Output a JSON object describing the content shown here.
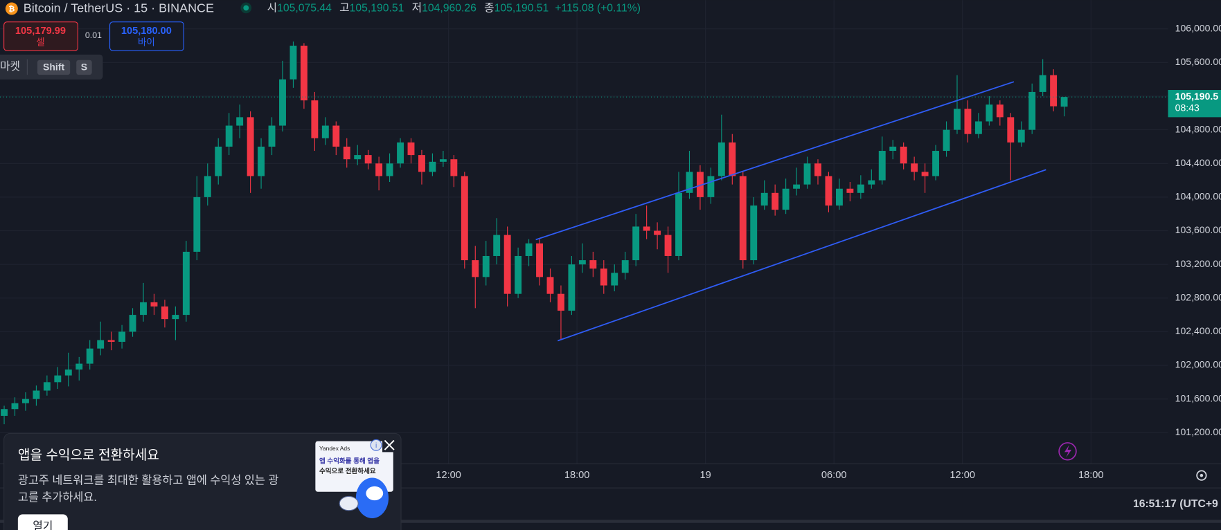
{
  "chart_data": {
    "type": "candlestick",
    "header": {
      "symbol": "Bitcoin / TetherUS · 15 · BINANCE",
      "ohlc": [
        {
          "key": "시",
          "value": "105,075.44"
        },
        {
          "key": "고",
          "value": "105,190.51"
        },
        {
          "key": "저",
          "value": "104,960.26"
        },
        {
          "key": "종",
          "value": "105,190.51"
        }
      ],
      "change": "+115.08 (+0.11%)"
    },
    "open": [
      101400,
      101480,
      101550,
      101600,
      101700,
      101800,
      101880,
      101950,
      102020,
      102200,
      102300,
      102280,
      102400,
      102600,
      102750,
      102700,
      102550,
      102600,
      103350,
      104000,
      104250,
      104600,
      104850,
      104950,
      104250,
      104600,
      104850,
      105400,
      105800,
      105150,
      104700,
      104850,
      104600,
      104450,
      104500,
      104400,
      104250,
      104400,
      104650,
      104500,
      104300,
      104420,
      104450,
      104250,
      103250,
      103050,
      103300,
      103550,
      102850,
      103300,
      103450,
      103050,
      102850,
      102650,
      103200,
      103250,
      103150,
      102950,
      103100,
      103250,
      103650,
      103600,
      103550,
      103300,
      104050,
      104300,
      104000,
      104250,
      104650,
      104250,
      103250,
      103900,
      104050,
      103850,
      104100,
      104150,
      104400,
      104250,
      103900,
      104100,
      104050,
      104150,
      104200,
      104550,
      104600,
      104400,
      104300,
      104250,
      104550,
      104800,
      105050,
      104750,
      104900,
      105100,
      104950,
      104650,
      104800,
      105250,
      105450,
      105075.44
    ],
    "high": [
      101520,
      101620,
      101680,
      101760,
      101880,
      101980,
      102150,
      102100,
      102300,
      102520,
      102400,
      102480,
      102680,
      102980,
      102850,
      102780,
      102700,
      103480,
      104250,
      104400,
      104700,
      105000,
      105100,
      105020,
      104700,
      104950,
      105620,
      105850,
      105830,
      105250,
      104950,
      104900,
      104700,
      104620,
      104560,
      104480,
      104520,
      104700,
      104700,
      104560,
      104520,
      104550,
      104500,
      104300,
      103420,
      103480,
      103750,
      103650,
      103400,
      103500,
      103500,
      103150,
      102950,
      103300,
      103450,
      103350,
      103250,
      103200,
      103350,
      103800,
      103900,
      103700,
      103650,
      104300,
      104550,
      104380,
      104350,
      104980,
      104750,
      104300,
      104000,
      104200,
      104150,
      104220,
      104350,
      104480,
      104450,
      104300,
      104220,
      104180,
      104260,
      104330,
      104720,
      104680,
      104650,
      104480,
      104400,
      104620,
      104900,
      105450,
      105150,
      105000,
      105200,
      105150,
      105000,
      104900,
      105350,
      105640,
      105520,
      105190.51
    ],
    "low": [
      101300,
      101400,
      101460,
      101520,
      101640,
      101720,
      101750,
      101820,
      101950,
      102120,
      102180,
      102200,
      102340,
      102520,
      102600,
      102450,
      102300,
      102520,
      103250,
      103900,
      104150,
      104500,
      104700,
      104050,
      104100,
      104500,
      104780,
      105300,
      105050,
      104550,
      104620,
      104500,
      104350,
      104380,
      104330,
      104080,
      104180,
      104350,
      104400,
      104150,
      104250,
      104360,
      104120,
      103150,
      102680,
      102950,
      103200,
      102700,
      102800,
      103180,
      102950,
      102750,
      102300,
      102600,
      103100,
      103050,
      102850,
      102880,
      103020,
      103180,
      103500,
      103380,
      103100,
      103250,
      103980,
      103850,
      103920,
      104200,
      104150,
      103150,
      103200,
      103850,
      103780,
      103800,
      104020,
      104100,
      104150,
      103820,
      103850,
      103950,
      103980,
      104100,
      104150,
      104450,
      104330,
      104200,
      104050,
      104200,
      104480,
      104750,
      104650,
      104700,
      104850,
      104850,
      104200,
      104600,
      104750,
      105200,
      105020,
      104960.26
    ],
    "close": [
      101480,
      101550,
      101600,
      101700,
      101800,
      101880,
      101950,
      102020,
      102200,
      102300,
      102280,
      102400,
      102600,
      102750,
      102700,
      102550,
      102600,
      103350,
      104000,
      104250,
      104600,
      104850,
      104950,
      104250,
      104600,
      104850,
      105400,
      105800,
      105150,
      104700,
      104850,
      104600,
      104450,
      104500,
      104400,
      104250,
      104400,
      104650,
      104500,
      104300,
      104420,
      104450,
      104250,
      103250,
      103050,
      103300,
      103550,
      102850,
      103300,
      103450,
      103050,
      102850,
      102650,
      103200,
      103250,
      103150,
      102950,
      103100,
      103250,
      103650,
      103600,
      103550,
      103300,
      104050,
      104300,
      104000,
      104250,
      104650,
      104250,
      103250,
      103900,
      104050,
      103850,
      104100,
      104150,
      104400,
      104250,
      103900,
      104100,
      104050,
      104150,
      104200,
      104550,
      104600,
      104400,
      104300,
      104250,
      104550,
      104800,
      105050,
      104750,
      104900,
      105100,
      104950,
      104650,
      104800,
      105250,
      105450,
      105080,
      105190.51
    ],
    "up_color": "#089981",
    "down_color": "#f23645",
    "xlim": [
      -0.39,
      108.7
    ],
    "xticks": [
      {
        "value": 41.5,
        "label": "12:00"
      },
      {
        "value": 53.5,
        "label": "18:00"
      },
      {
        "value": 65.5,
        "label": "19"
      },
      {
        "value": 77.5,
        "label": "06:00"
      },
      {
        "value": 89.5,
        "label": "12:00"
      },
      {
        "value": 101.5,
        "label": "18:00"
      }
    ],
    "ylim": [
      100830,
      106342
    ],
    "yticks": [
      {
        "value": 101200,
        "label": "101,200.00"
      },
      {
        "value": 101600,
        "label": "101,600.00"
      },
      {
        "value": 102000,
        "label": "102,000.00"
      },
      {
        "value": 102400,
        "label": "102,400.00"
      },
      {
        "value": 102800,
        "label": "102,800.00"
      },
      {
        "value": 103200,
        "label": "103,200.00"
      },
      {
        "value": 103600,
        "label": "103,600.00"
      },
      {
        "value": 104000,
        "label": "104,000.00"
      },
      {
        "value": 104400,
        "label": "104,400.00"
      },
      {
        "value": 104800,
        "label": "104,800.00"
      },
      {
        "value": 105200,
        "label": "105,200.00"
      },
      {
        "value": 105600,
        "label": "105,600.00"
      },
      {
        "value": 106000,
        "label": "106,000.00"
      }
    ],
    "grid": true,
    "price_tag": {
      "value": 105190.51,
      "label": "105,190.5",
      "countdown": "08:43",
      "color": "#089981"
    },
    "trend_lines": [
      {
        "color": "#2f5cf5",
        "x": [
          49.65,
          94.3
        ],
        "y": [
          103494,
          105371
        ]
      },
      {
        "color": "#2f5cf5",
        "x": [
          51.7,
          97.3
        ],
        "y": [
          102292,
          104326
        ]
      }
    ],
    "timestamp": "16:51:17 (UTC+9"
  },
  "trade_panel": {
    "sell_price": "105,179.99",
    "sell_label": "셀",
    "spread": "0.01",
    "buy_price": "105,180.00",
    "buy_label": "바이",
    "order_type": "마켓",
    "keys": [
      "Shift",
      "S"
    ]
  },
  "ad": {
    "title": "앱을 수익으로 전환하세요",
    "body_lines": [
      "광고주 네트워크를 최대한 활용하고 앱에 수익성 있는 광",
      "고를 추가하세요."
    ],
    "button": "열기",
    "image_brand": "Yandex Ads",
    "image_lines": [
      "앱 수익화를 통해 앱을",
      "수익으로 전환하세요"
    ]
  }
}
